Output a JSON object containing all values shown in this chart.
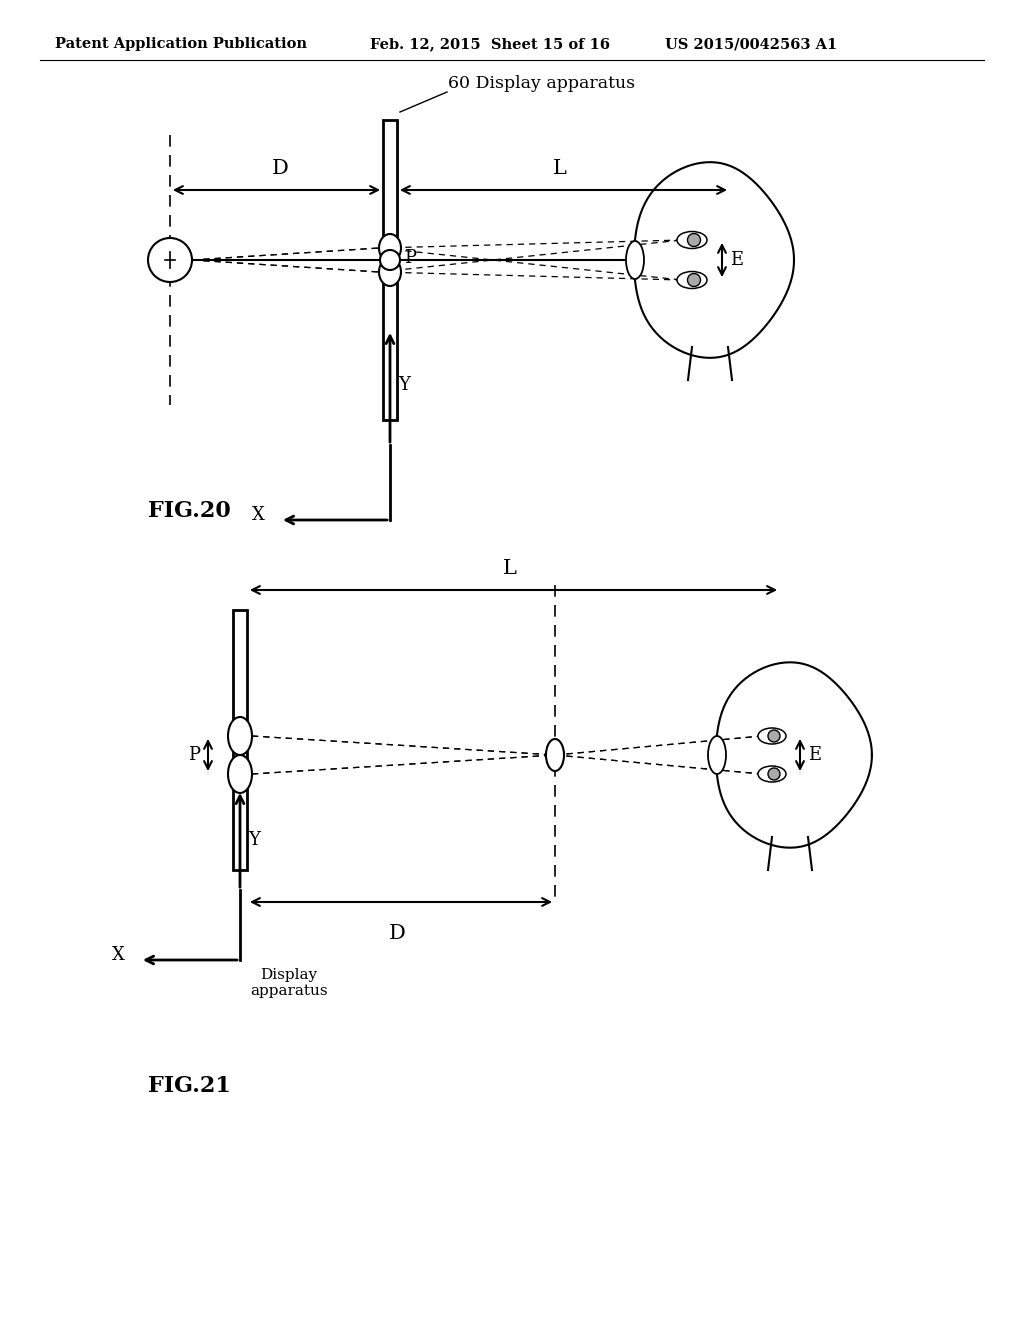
{
  "bg_color": "#ffffff",
  "header_text": "Patent Application Publication",
  "header_date": "Feb. 12, 2015  Sheet 15 of 16",
  "header_patent": "US 2015/0042563 A1",
  "fig20_label": "FIG.20",
  "fig21_label": "FIG.21",
  "fig20_title": "60 Display apparatus",
  "fig21_subtitle": "Display\napparatus"
}
